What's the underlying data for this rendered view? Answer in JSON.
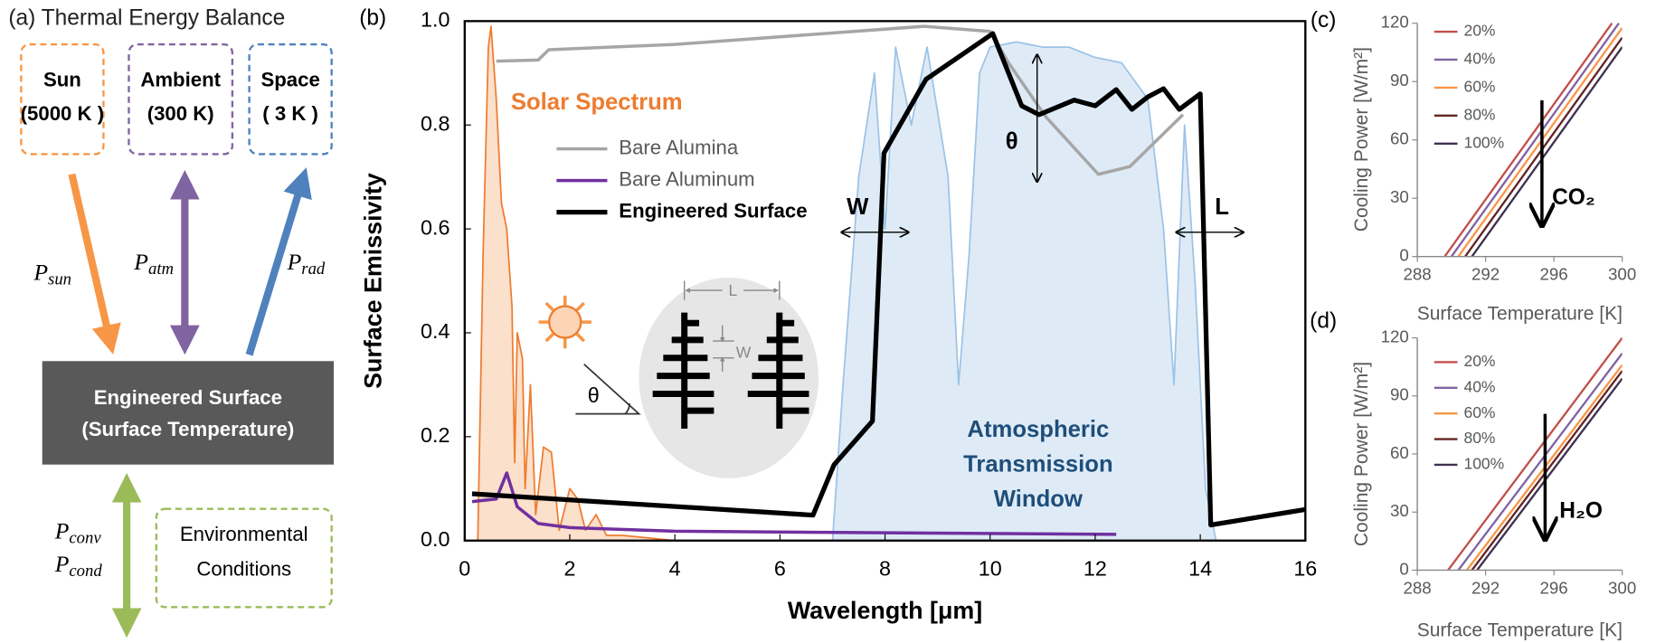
{
  "diagram": {
    "title": "(a) Thermal Energy Balance",
    "sources": [
      {
        "name": "Sun",
        "temperature": "(5000 K )"
      },
      {
        "name": "Ambient",
        "temperature": "(300 K)"
      },
      {
        "name": "Space",
        "temperature": "( 3 K )"
      }
    ],
    "surface": [
      "Engineered Surface",
      "(Surface Temperature)"
    ],
    "environment": [
      "Environmental",
      "Conditions"
    ],
    "fluxes": [
      {
        "symbol": "P",
        "subscript": "sun"
      },
      {
        "symbol": "P",
        "subscript": "atm"
      },
      {
        "symbol": "P",
        "subscript": "rad"
      },
      {
        "symbol": "P",
        "subscript": "conv"
      },
      {
        "symbol": "P",
        "subscript": "cond"
      }
    ]
  },
  "chart_data": [
    {
      "type": "line",
      "panel_label": "(b)",
      "x_label": "Wavelength [μm]",
      "y_label": "Surface Emissivity",
      "xlim": [
        0,
        16
      ],
      "xticks": [
        0,
        2,
        4,
        6,
        8,
        10,
        12,
        14,
        16
      ],
      "ylim": [
        0,
        1
      ],
      "yticks": [
        {
          "value": 0,
          "label": "0.0"
        },
        0.2,
        0.4,
        0.6,
        0.8,
        {
          "value": 1,
          "label": "1.0"
        }
      ],
      "series": [
        {
          "label": [
            "Atmospheric",
            "Transmission",
            "Window"
          ],
          "style": "area",
          "color": "#9dc3e6",
          "fill": "#deebf7",
          "x": [
            7,
            7.2,
            7.5,
            7.8,
            8,
            8.2,
            8.5,
            8.8,
            9.2,
            9.4,
            9.6,
            9.8,
            10,
            10.5,
            11,
            11.5,
            12,
            12.5,
            13,
            13.3,
            13.5,
            13.7,
            13.9,
            14.1,
            14.3
          ],
          "values": [
            0,
            0.3,
            0.7,
            0.9,
            0.6,
            0.95,
            0.8,
            0.95,
            0.7,
            0.3,
            0.55,
            0.9,
            0.95,
            0.96,
            0.95,
            0.95,
            0.93,
            0.92,
            0.85,
            0.6,
            0.3,
            0.8,
            0.5,
            0.1,
            0
          ]
        },
        {
          "label": [
            "Solar Spectrum"
          ],
          "style": "area",
          "color": "#ed7d31",
          "fill": "#fbe0cc",
          "x": [
            0.25,
            0.35,
            0.45,
            0.5,
            0.6,
            0.7,
            0.8,
            0.9,
            0.95,
            1.0,
            1.1,
            1.15,
            1.25,
            1.35,
            1.5,
            1.65,
            1.8,
            2.0,
            2.15,
            2.3,
            2.5,
            2.7,
            3,
            4
          ],
          "values": [
            0,
            0.55,
            0.95,
            0.99,
            0.85,
            0.65,
            0.6,
            0.45,
            0.15,
            0.4,
            0.35,
            0.1,
            0.3,
            0.05,
            0.18,
            0.17,
            0.02,
            0.1,
            0.08,
            0.02,
            0.05,
            0.01,
            0.01,
            0
          ]
        },
        {
          "name": "Bare Alumina",
          "style": "line",
          "color": "#a6a6a6",
          "width": 3,
          "x": [
            0.6,
            1.4,
            1.6,
            4,
            8.75,
            10,
            10.35,
            11.05,
            12.06,
            12.66,
            13.67
          ],
          "values": [
            0.923,
            0.925,
            0.945,
            0.955,
            0.99,
            0.98,
            0.92,
            0.817,
            0.705,
            0.72,
            0.82
          ]
        },
        {
          "name": "Bare Aluminum",
          "style": "line",
          "color": "#7030a0",
          "width": 3,
          "x": [
            0.14,
            0.6,
            0.8,
            1.0,
            1.4,
            2,
            4,
            8,
            12.4
          ],
          "values": [
            0.075,
            0.08,
            0.13,
            0.065,
            0.033,
            0.025,
            0.018,
            0.015,
            0.012
          ]
        },
        {
          "name": "Engineered Surface",
          "style": "line",
          "color": "#000000",
          "width": 4.5,
          "x": [
            0.14,
            6.63,
            7.03,
            7.76,
            7.98,
            8.78,
            10.05,
            10.6,
            10.93,
            11.6,
            12.0,
            12.4,
            12.7,
            13.0,
            13.3,
            13.6,
            14.0,
            14.2,
            16
          ],
          "values": [
            0.09,
            0.049,
            0.146,
            0.23,
            0.746,
            0.888,
            0.976,
            0.837,
            0.82,
            0.848,
            0.837,
            0.868,
            0.83,
            0.854,
            0.87,
            0.83,
            0.86,
            0.03,
            0.06
          ]
        }
      ],
      "annotations": [
        "W",
        "L",
        "θ",
        "L",
        "W",
        "θ"
      ]
    },
    {
      "type": "line",
      "panel_label": "(c)",
      "x_label": "Surface Temperature [K]",
      "y_label": "Cooling Power [W/m²]",
      "xlim": [
        288,
        300
      ],
      "xticks": [
        288,
        292,
        296,
        300
      ],
      "ylim": [
        0,
        120
      ],
      "yticks": [
        0,
        30,
        60,
        90,
        120
      ],
      "series": [
        {
          "name": "20%",
          "color": "#c0504d",
          "x": [
            289.6,
            299.4
          ],
          "values": [
            0,
            120
          ]
        },
        {
          "name": "40%",
          "color": "#8064a2",
          "x": [
            290.0,
            299.8
          ],
          "values": [
            0,
            120
          ]
        },
        {
          "name": "60%",
          "color": "#f79646",
          "x": [
            290.4,
            300
          ],
          "values": [
            0,
            117.6
          ]
        },
        {
          "name": "80%",
          "color": "#632523",
          "x": [
            290.8,
            300
          ],
          "values": [
            0,
            112.6
          ]
        },
        {
          "name": "100%",
          "color": "#3f3151",
          "x": [
            291.2,
            300
          ],
          "values": [
            0,
            107.8
          ]
        }
      ],
      "annotations": [
        "CO₂"
      ]
    },
    {
      "type": "line",
      "panel_label": "(d)",
      "x_label": "Surface Temperature [K]",
      "y_label": "Cooling Power [W/m²]",
      "xlim": [
        288,
        300
      ],
      "xticks": [
        288,
        292,
        296,
        300
      ],
      "ylim": [
        0,
        120
      ],
      "yticks": [
        0,
        30,
        60,
        90,
        120
      ],
      "series": [
        {
          "name": "20%",
          "color": "#c0504d",
          "x": [
            289.8,
            300
          ],
          "values": [
            0,
            120
          ]
        },
        {
          "name": "40%",
          "color": "#8064a2",
          "x": [
            290.4,
            300
          ],
          "values": [
            0,
            112
          ]
        },
        {
          "name": "60%",
          "color": "#f79646",
          "x": [
            290.9,
            300
          ],
          "values": [
            0,
            106
          ]
        },
        {
          "name": "80%",
          "color": "#632523",
          "x": [
            291.2,
            300
          ],
          "values": [
            0,
            103
          ]
        },
        {
          "name": "100%",
          "color": "#3f3151",
          "x": [
            291.5,
            300
          ],
          "values": [
            0,
            99
          ]
        }
      ],
      "annotations": [
        "H₂O"
      ]
    }
  ]
}
